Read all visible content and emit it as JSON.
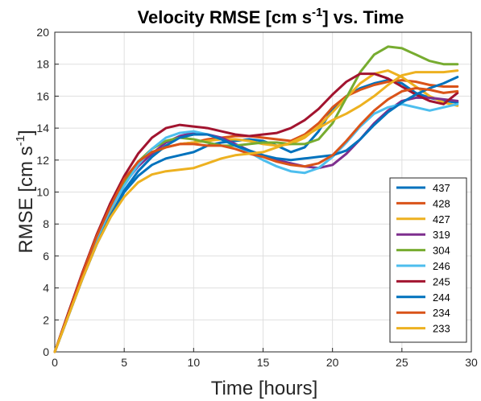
{
  "chart_data": {
    "type": "line",
    "title": {
      "main": "Velocity RMSE [cm s",
      "sup": "-1",
      "rest": "] vs. Time"
    },
    "xlabel": "Time [hours]",
    "ylabel": {
      "main": "RMSE [cm s",
      "sup": "-1",
      "rest": "]"
    },
    "xlim": [
      0,
      30
    ],
    "ylim": [
      0,
      20
    ],
    "xticks": [
      0,
      5,
      10,
      15,
      20,
      25,
      30
    ],
    "yticks": [
      0,
      2,
      4,
      6,
      8,
      10,
      12,
      14,
      16,
      18,
      20
    ],
    "grid": true,
    "legend_position": "bottom-right",
    "series": [
      {
        "name": "437",
        "color": "#0072BD",
        "points": [
          [
            0,
            0
          ],
          [
            1,
            2.3
          ],
          [
            2,
            4.6
          ],
          [
            3,
            6.7
          ],
          [
            4,
            8.4
          ],
          [
            5,
            10.0
          ],
          [
            6,
            11.0
          ],
          [
            7,
            11.7
          ],
          [
            8,
            12.1
          ],
          [
            9,
            12.3
          ],
          [
            10,
            12.5
          ],
          [
            11,
            12.9
          ],
          [
            12,
            13.1
          ],
          [
            13,
            13.2
          ],
          [
            14,
            13.3
          ],
          [
            15,
            13.2
          ],
          [
            16,
            12.9
          ],
          [
            17,
            12.5
          ],
          [
            18,
            12.8
          ],
          [
            19,
            13.8
          ],
          [
            20,
            15.2
          ],
          [
            21,
            16.0
          ],
          [
            22,
            16.5
          ],
          [
            23,
            16.8
          ],
          [
            24,
            17.0
          ],
          [
            25,
            16.8
          ],
          [
            26,
            16.2
          ],
          [
            27,
            15.9
          ],
          [
            28,
            15.7
          ],
          [
            29,
            15.6
          ]
        ]
      },
      {
        "name": "428",
        "color": "#D95319",
        "points": [
          [
            0,
            0
          ],
          [
            1,
            2.4
          ],
          [
            2,
            4.8
          ],
          [
            3,
            7.0
          ],
          [
            4,
            8.9
          ],
          [
            5,
            10.5
          ],
          [
            6,
            11.7
          ],
          [
            7,
            12.5
          ],
          [
            8,
            12.8
          ],
          [
            9,
            13.0
          ],
          [
            10,
            13.1
          ],
          [
            11,
            13.3
          ],
          [
            12,
            13.4
          ],
          [
            13,
            13.5
          ],
          [
            14,
            13.5
          ],
          [
            15,
            13.4
          ],
          [
            16,
            13.3
          ],
          [
            17,
            13.2
          ],
          [
            18,
            13.6
          ],
          [
            19,
            14.3
          ],
          [
            20,
            15.3
          ],
          [
            21,
            16.0
          ],
          [
            22,
            16.4
          ],
          [
            23,
            16.7
          ],
          [
            24,
            16.9
          ],
          [
            25,
            17.0
          ],
          [
            26,
            16.9
          ],
          [
            27,
            16.7
          ],
          [
            28,
            16.6
          ],
          [
            29,
            16.6
          ]
        ]
      },
      {
        "name": "427",
        "color": "#EDB120",
        "points": [
          [
            0,
            0
          ],
          [
            1,
            2.4
          ],
          [
            2,
            4.7
          ],
          [
            3,
            6.9
          ],
          [
            4,
            8.8
          ],
          [
            5,
            10.5
          ],
          [
            6,
            11.7
          ],
          [
            7,
            12.4
          ],
          [
            8,
            12.8
          ],
          [
            9,
            13.0
          ],
          [
            10,
            13.1
          ],
          [
            11,
            13.2
          ],
          [
            12,
            13.3
          ],
          [
            13,
            13.3
          ],
          [
            14,
            13.2
          ],
          [
            15,
            13.0
          ],
          [
            16,
            12.9
          ],
          [
            17,
            13.0
          ],
          [
            18,
            13.4
          ],
          [
            19,
            14.1
          ],
          [
            20,
            15.0
          ],
          [
            21,
            15.9
          ],
          [
            22,
            16.8
          ],
          [
            23,
            17.4
          ],
          [
            24,
            17.6
          ],
          [
            25,
            17.2
          ],
          [
            26,
            16.6
          ],
          [
            27,
            16.0
          ],
          [
            28,
            15.6
          ],
          [
            29,
            15.4
          ]
        ]
      },
      {
        "name": "319",
        "color": "#7E2F8E",
        "points": [
          [
            0,
            0
          ],
          [
            1,
            2.4
          ],
          [
            2,
            4.8
          ],
          [
            3,
            7.0
          ],
          [
            4,
            8.9
          ],
          [
            5,
            10.5
          ],
          [
            6,
            11.6
          ],
          [
            7,
            12.4
          ],
          [
            8,
            13.1
          ],
          [
            9,
            13.5
          ],
          [
            10,
            13.7
          ],
          [
            11,
            13.6
          ],
          [
            12,
            13.4
          ],
          [
            13,
            13.0
          ],
          [
            14,
            12.6
          ],
          [
            15,
            12.3
          ],
          [
            16,
            12.0
          ],
          [
            17,
            11.8
          ],
          [
            18,
            11.6
          ],
          [
            19,
            11.5
          ],
          [
            20,
            11.7
          ],
          [
            21,
            12.4
          ],
          [
            22,
            13.3
          ],
          [
            23,
            14.3
          ],
          [
            24,
            15.1
          ],
          [
            25,
            15.7
          ],
          [
            26,
            15.9
          ],
          [
            27,
            15.9
          ],
          [
            28,
            15.8
          ],
          [
            29,
            15.7
          ]
        ]
      },
      {
        "name": "304",
        "color": "#77AC30",
        "points": [
          [
            0,
            0
          ],
          [
            1,
            2.5
          ],
          [
            2,
            4.9
          ],
          [
            3,
            7.1
          ],
          [
            4,
            9.0
          ],
          [
            5,
            10.6
          ],
          [
            6,
            11.9
          ],
          [
            7,
            12.7
          ],
          [
            8,
            13.2
          ],
          [
            9,
            13.4
          ],
          [
            10,
            13.3
          ],
          [
            11,
            13.1
          ],
          [
            12,
            12.9
          ],
          [
            13,
            12.9
          ],
          [
            14,
            13.0
          ],
          [
            15,
            13.1
          ],
          [
            16,
            13.1
          ],
          [
            17,
            13.0
          ],
          [
            18,
            13.0
          ],
          [
            19,
            13.3
          ],
          [
            20,
            14.3
          ],
          [
            21,
            15.9
          ],
          [
            22,
            17.5
          ],
          [
            23,
            18.6
          ],
          [
            24,
            19.1
          ],
          [
            25,
            19.0
          ],
          [
            26,
            18.6
          ],
          [
            27,
            18.2
          ],
          [
            28,
            18.0
          ],
          [
            29,
            18.0
          ]
        ]
      },
      {
        "name": "246",
        "color": "#4DBEEE",
        "points": [
          [
            0,
            0
          ],
          [
            1,
            2.4
          ],
          [
            2,
            4.8
          ],
          [
            3,
            7.0
          ],
          [
            4,
            8.9
          ],
          [
            5,
            10.4
          ],
          [
            6,
            11.7
          ],
          [
            7,
            12.7
          ],
          [
            8,
            13.4
          ],
          [
            9,
            13.7
          ],
          [
            10,
            13.8
          ],
          [
            11,
            13.6
          ],
          [
            12,
            13.3
          ],
          [
            13,
            12.9
          ],
          [
            14,
            12.5
          ],
          [
            15,
            12.0
          ],
          [
            16,
            11.6
          ],
          [
            17,
            11.3
          ],
          [
            18,
            11.2
          ],
          [
            19,
            11.5
          ],
          [
            20,
            12.2
          ],
          [
            21,
            13.1
          ],
          [
            22,
            14.1
          ],
          [
            23,
            14.9
          ],
          [
            24,
            15.3
          ],
          [
            25,
            15.5
          ],
          [
            26,
            15.3
          ],
          [
            27,
            15.1
          ],
          [
            28,
            15.3
          ],
          [
            29,
            15.5
          ]
        ]
      },
      {
        "name": "245",
        "color": "#A2142F",
        "points": [
          [
            0,
            0
          ],
          [
            1,
            2.5
          ],
          [
            2,
            5.0
          ],
          [
            3,
            7.3
          ],
          [
            4,
            9.3
          ],
          [
            5,
            11.0
          ],
          [
            6,
            12.4
          ],
          [
            7,
            13.4
          ],
          [
            8,
            14.0
          ],
          [
            9,
            14.2
          ],
          [
            10,
            14.1
          ],
          [
            11,
            14.0
          ],
          [
            12,
            13.8
          ],
          [
            13,
            13.6
          ],
          [
            14,
            13.5
          ],
          [
            15,
            13.6
          ],
          [
            16,
            13.7
          ],
          [
            17,
            14.0
          ],
          [
            18,
            14.5
          ],
          [
            19,
            15.2
          ],
          [
            20,
            16.1
          ],
          [
            21,
            16.9
          ],
          [
            22,
            17.4
          ],
          [
            23,
            17.4
          ],
          [
            24,
            17.1
          ],
          [
            25,
            16.6
          ],
          [
            26,
            16.1
          ],
          [
            27,
            15.7
          ],
          [
            28,
            15.5
          ],
          [
            29,
            16.2
          ]
        ]
      },
      {
        "name": "244",
        "color": "#0072BD",
        "points": [
          [
            0,
            0
          ],
          [
            1,
            2.3
          ],
          [
            2,
            4.6
          ],
          [
            3,
            6.7
          ],
          [
            4,
            8.5
          ],
          [
            5,
            10.1
          ],
          [
            6,
            11.3
          ],
          [
            7,
            12.2
          ],
          [
            8,
            12.9
          ],
          [
            9,
            13.4
          ],
          [
            10,
            13.6
          ],
          [
            11,
            13.6
          ],
          [
            12,
            13.3
          ],
          [
            13,
            12.9
          ],
          [
            14,
            12.6
          ],
          [
            15,
            12.3
          ],
          [
            16,
            12.1
          ],
          [
            17,
            12.0
          ],
          [
            18,
            12.1
          ],
          [
            19,
            12.2
          ],
          [
            20,
            12.3
          ],
          [
            21,
            12.6
          ],
          [
            22,
            13.3
          ],
          [
            23,
            14.2
          ],
          [
            24,
            15.0
          ],
          [
            25,
            15.6
          ],
          [
            26,
            16.1
          ],
          [
            27,
            16.5
          ],
          [
            28,
            16.8
          ],
          [
            29,
            17.2
          ]
        ]
      },
      {
        "name": "234",
        "color": "#D95319",
        "points": [
          [
            0,
            0
          ],
          [
            1,
            2.4
          ],
          [
            2,
            4.9
          ],
          [
            3,
            7.2
          ],
          [
            4,
            9.1
          ],
          [
            5,
            10.8
          ],
          [
            6,
            11.9
          ],
          [
            7,
            12.5
          ],
          [
            8,
            12.8
          ],
          [
            9,
            13.0
          ],
          [
            10,
            13.0
          ],
          [
            11,
            12.9
          ],
          [
            12,
            12.9
          ],
          [
            13,
            12.7
          ],
          [
            14,
            12.4
          ],
          [
            15,
            12.2
          ],
          [
            16,
            11.9
          ],
          [
            17,
            11.7
          ],
          [
            18,
            11.6
          ],
          [
            19,
            11.8
          ],
          [
            20,
            12.3
          ],
          [
            21,
            13.2
          ],
          [
            22,
            14.2
          ],
          [
            23,
            15.1
          ],
          [
            24,
            15.8
          ],
          [
            25,
            16.3
          ],
          [
            26,
            16.5
          ],
          [
            27,
            16.4
          ],
          [
            28,
            16.2
          ],
          [
            29,
            16.3
          ]
        ]
      },
      {
        "name": "233",
        "color": "#EDB120",
        "points": [
          [
            0,
            0
          ],
          [
            1,
            2.3
          ],
          [
            2,
            4.6
          ],
          [
            3,
            6.7
          ],
          [
            4,
            8.4
          ],
          [
            5,
            9.7
          ],
          [
            6,
            10.6
          ],
          [
            7,
            11.1
          ],
          [
            8,
            11.3
          ],
          [
            9,
            11.4
          ],
          [
            10,
            11.5
          ],
          [
            11,
            11.8
          ],
          [
            12,
            12.1
          ],
          [
            13,
            12.3
          ],
          [
            14,
            12.4
          ],
          [
            15,
            12.5
          ],
          [
            16,
            12.8
          ],
          [
            17,
            13.1
          ],
          [
            18,
            13.5
          ],
          [
            19,
            14.0
          ],
          [
            20,
            14.5
          ],
          [
            21,
            14.9
          ],
          [
            22,
            15.4
          ],
          [
            23,
            16.0
          ],
          [
            24,
            16.7
          ],
          [
            25,
            17.3
          ],
          [
            26,
            17.5
          ],
          [
            27,
            17.5
          ],
          [
            28,
            17.5
          ],
          [
            29,
            17.6
          ]
        ]
      }
    ]
  }
}
